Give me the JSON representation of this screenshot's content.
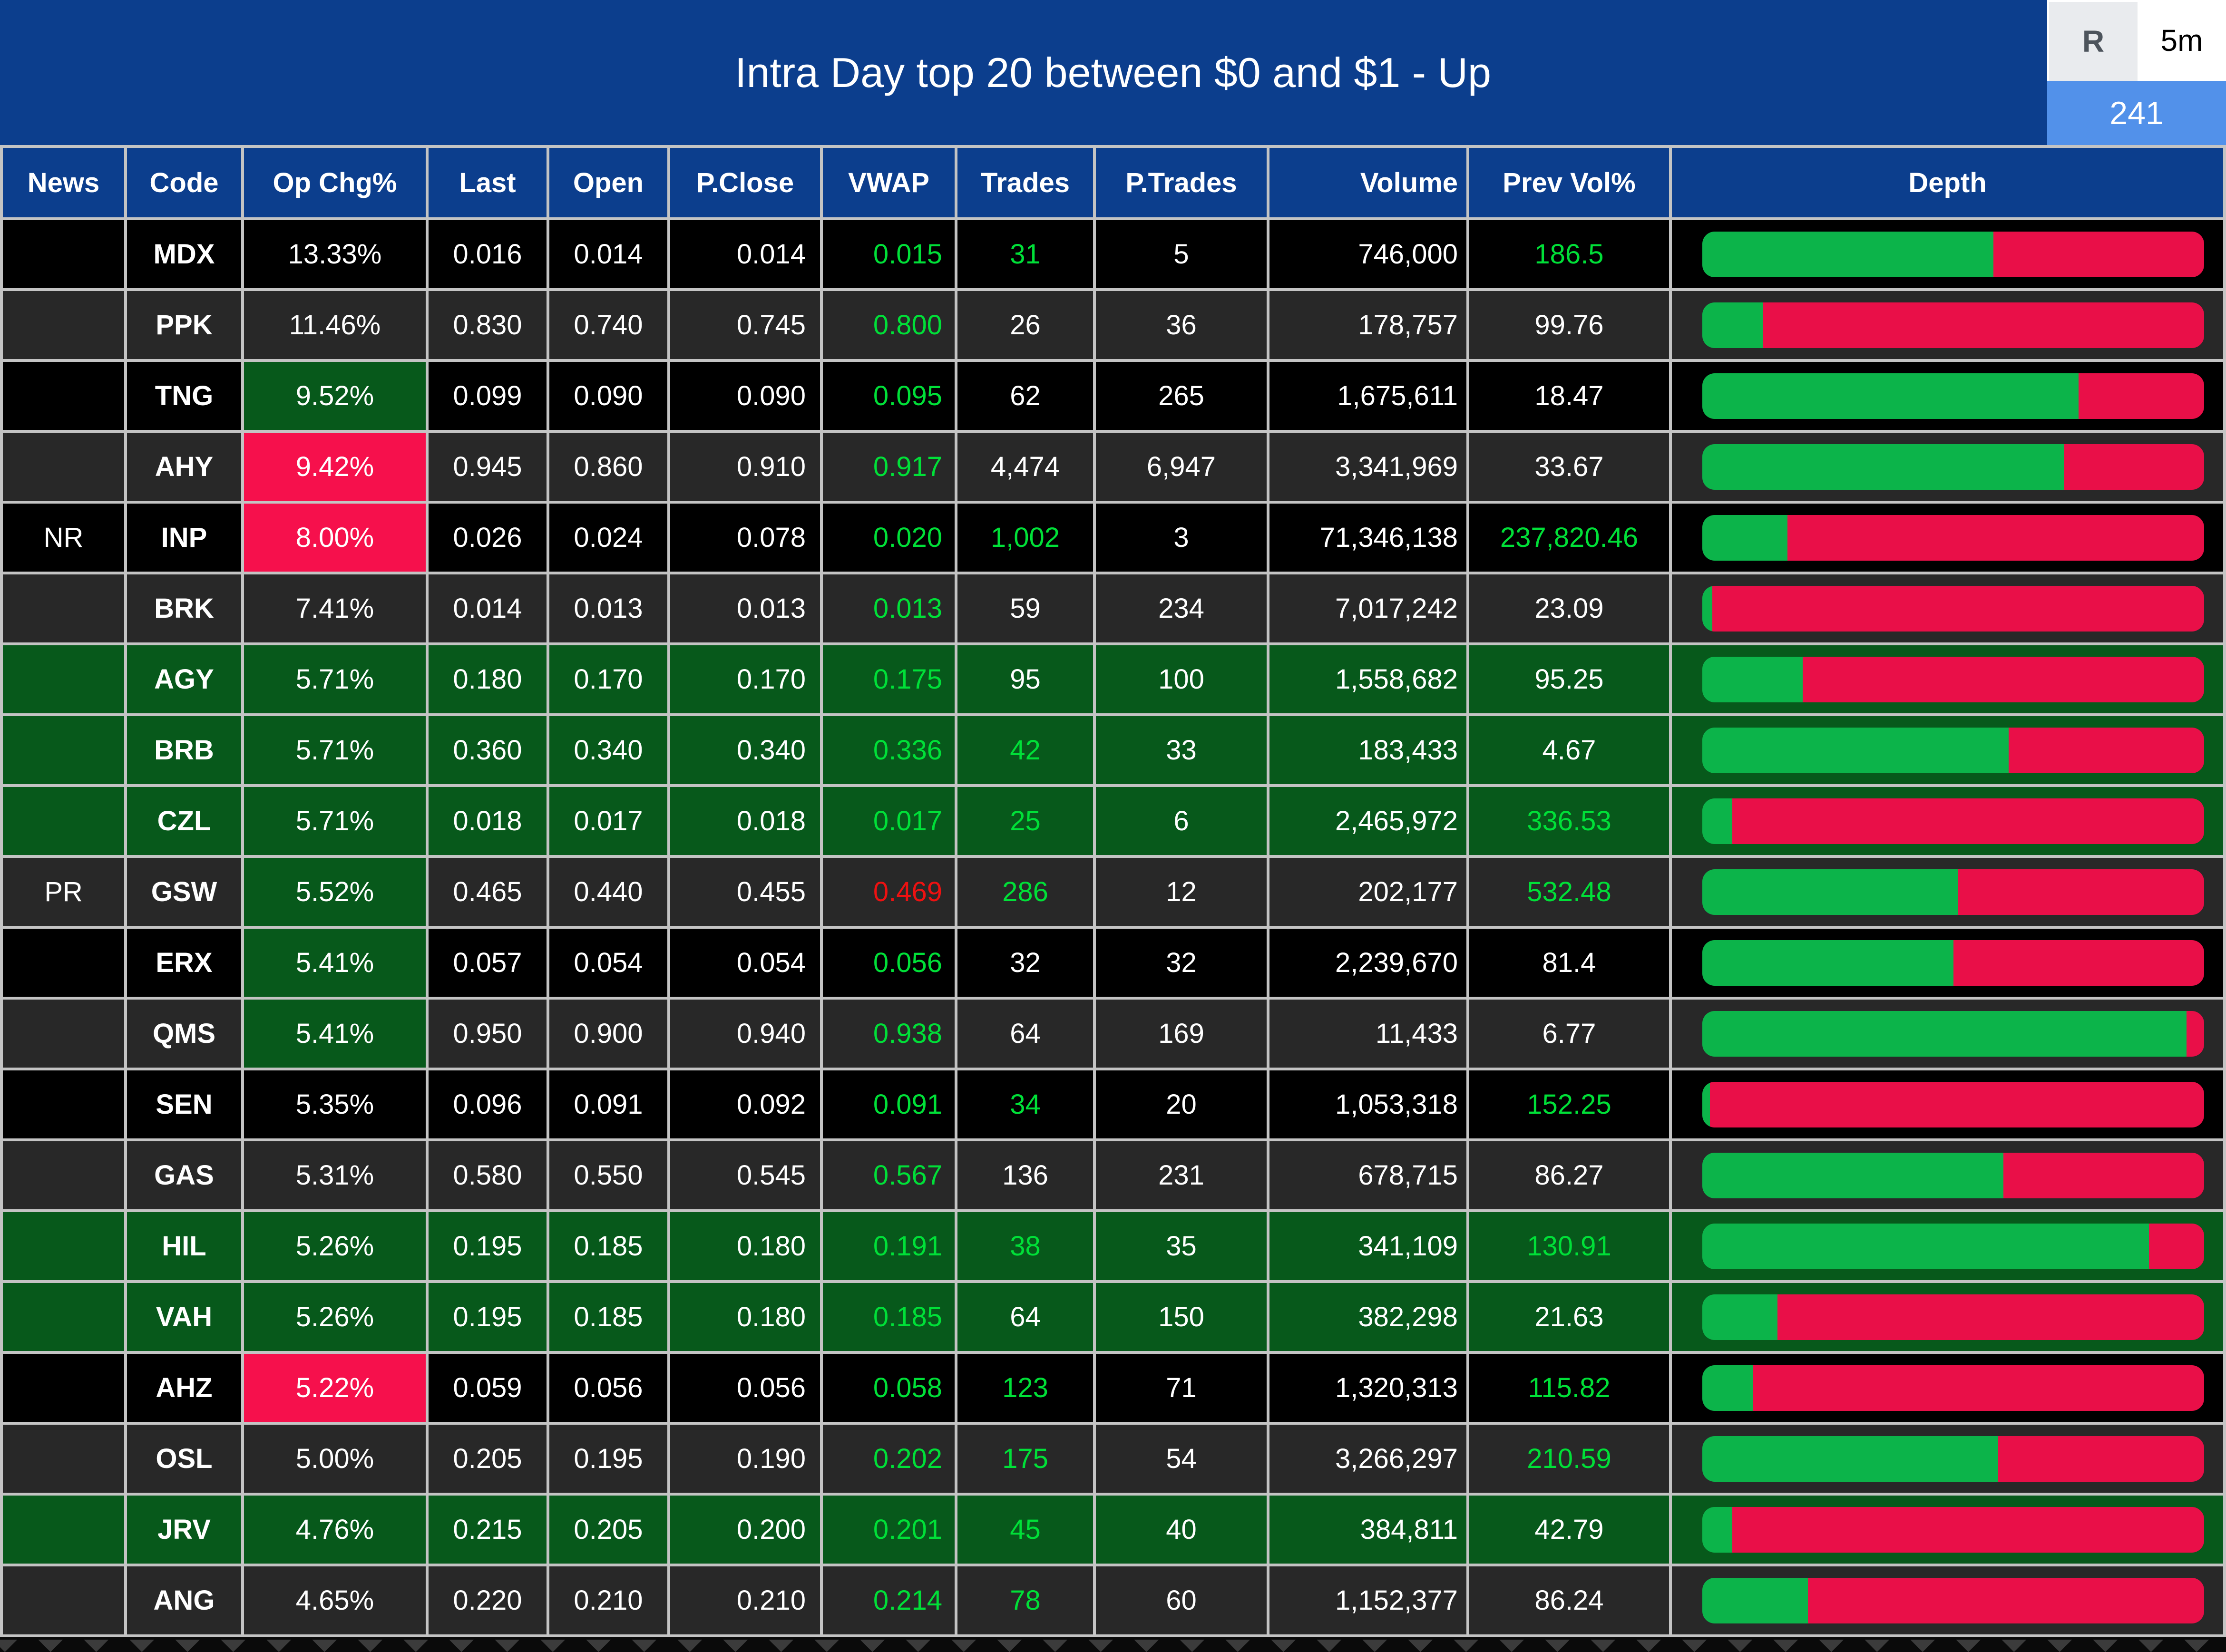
{
  "header": {
    "title": "Intra Day top 20 between $0 and $1 - Up",
    "refresh_label": "R",
    "timeframe": "5m",
    "count_badge": "241"
  },
  "colors": {
    "title_bar_blue": "#0c3e8d",
    "badge_blue": "#5291ea",
    "row_black": "#000000",
    "row_gray": "#282828",
    "row_green": "#07591b",
    "cell_pink": "#f6104c",
    "text_green": "#00e038",
    "text_red": "#ee1111",
    "bar_green": "#0cb44a",
    "bar_red": "#e90f48",
    "gridline": "#c4c4c4"
  },
  "columns": [
    {
      "key": "news",
      "label": "News",
      "align": "c"
    },
    {
      "key": "code",
      "label": "Code",
      "align": "c"
    },
    {
      "key": "op_chg",
      "label": "Op Chg%",
      "align": "c"
    },
    {
      "key": "last",
      "label": "Last",
      "align": "c"
    },
    {
      "key": "open",
      "label": "Open",
      "align": "c"
    },
    {
      "key": "p_close",
      "label": "P.Close",
      "align": "r",
      "pad": "pad-pc"
    },
    {
      "key": "vwap",
      "label": "VWAP",
      "align": "r",
      "pad": "pad-vw"
    },
    {
      "key": "trades",
      "label": "Trades",
      "align": "c"
    },
    {
      "key": "p_trades",
      "label": "P.Trades",
      "align": "c"
    },
    {
      "key": "volume",
      "label": "Volume",
      "align": "r",
      "pad": "pad-vol",
      "hdr_align": "r"
    },
    {
      "key": "prev_vol",
      "label": "Prev Vol%",
      "align": "c"
    },
    {
      "key": "depth",
      "label": "Depth",
      "align": "c"
    }
  ],
  "rows": [
    {
      "news": "",
      "code": "MDX",
      "op_chg": "13.33%",
      "op_bg": "none",
      "last": "0.016",
      "open": "0.014",
      "p_close": "0.014",
      "vwap": "0.015",
      "vwap_color": "green",
      "trades": "31",
      "trades_color": "green",
      "p_trades": "5",
      "volume": "746,000",
      "prev_vol": "186.5",
      "prev_vol_color": "green",
      "row_bg": "black",
      "depth_green_pct": 58
    },
    {
      "news": "",
      "code": "PPK",
      "op_chg": "11.46%",
      "op_bg": "none",
      "last": "0.830",
      "open": "0.740",
      "p_close": "0.745",
      "vwap": "0.800",
      "vwap_color": "green",
      "trades": "26",
      "trades_color": "white",
      "p_trades": "36",
      "volume": "178,757",
      "prev_vol": "99.76",
      "prev_vol_color": "white",
      "row_bg": "gray",
      "depth_green_pct": 12
    },
    {
      "news": "",
      "code": "TNG",
      "op_chg": "9.52%",
      "op_bg": "green",
      "last": "0.099",
      "open": "0.090",
      "p_close": "0.090",
      "vwap": "0.095",
      "vwap_color": "green",
      "trades": "62",
      "trades_color": "white",
      "p_trades": "265",
      "volume": "1,675,611",
      "prev_vol": "18.47",
      "prev_vol_color": "white",
      "row_bg": "black",
      "depth_green_pct": 75
    },
    {
      "news": "",
      "code": "AHY",
      "op_chg": "9.42%",
      "op_bg": "pink",
      "last": "0.945",
      "open": "0.860",
      "p_close": "0.910",
      "vwap": "0.917",
      "vwap_color": "green",
      "trades": "4,474",
      "trades_color": "white",
      "p_trades": "6,947",
      "volume": "3,341,969",
      "prev_vol": "33.67",
      "prev_vol_color": "white",
      "row_bg": "gray",
      "depth_green_pct": 72
    },
    {
      "news": "NR",
      "code": "INP",
      "op_chg": "8.00%",
      "op_bg": "pink",
      "last": "0.026",
      "open": "0.024",
      "p_close": "0.078",
      "vwap": "0.020",
      "vwap_color": "green",
      "trades": "1,002",
      "trades_color": "green",
      "p_trades": "3",
      "volume": "71,346,138",
      "prev_vol": "237,820.46",
      "prev_vol_color": "green",
      "row_bg": "black",
      "depth_green_pct": 17
    },
    {
      "news": "",
      "code": "BRK",
      "op_chg": "7.41%",
      "op_bg": "none",
      "last": "0.014",
      "open": "0.013",
      "p_close": "0.013",
      "vwap": "0.013",
      "vwap_color": "green",
      "trades": "59",
      "trades_color": "white",
      "p_trades": "234",
      "volume": "7,017,242",
      "prev_vol": "23.09",
      "prev_vol_color": "white",
      "row_bg": "gray",
      "depth_green_pct": 2
    },
    {
      "news": "",
      "code": "AGY",
      "op_chg": "5.71%",
      "op_bg": "none",
      "last": "0.180",
      "open": "0.170",
      "p_close": "0.170",
      "vwap": "0.175",
      "vwap_color": "green",
      "trades": "95",
      "trades_color": "white",
      "p_trades": "100",
      "volume": "1,558,682",
      "prev_vol": "95.25",
      "prev_vol_color": "white",
      "row_bg": "green",
      "depth_green_pct": 20
    },
    {
      "news": "",
      "code": "BRB",
      "op_chg": "5.71%",
      "op_bg": "none",
      "last": "0.360",
      "open": "0.340",
      "p_close": "0.340",
      "vwap": "0.336",
      "vwap_color": "green",
      "trades": "42",
      "trades_color": "green",
      "p_trades": "33",
      "volume": "183,433",
      "prev_vol": "4.67",
      "prev_vol_color": "white",
      "row_bg": "green",
      "depth_green_pct": 61
    },
    {
      "news": "",
      "code": "CZL",
      "op_chg": "5.71%",
      "op_bg": "none",
      "last": "0.018",
      "open": "0.017",
      "p_close": "0.018",
      "vwap": "0.017",
      "vwap_color": "green",
      "trades": "25",
      "trades_color": "green",
      "p_trades": "6",
      "volume": "2,465,972",
      "prev_vol": "336.53",
      "prev_vol_color": "green",
      "row_bg": "green",
      "depth_green_pct": 6
    },
    {
      "news": "PR",
      "code": "GSW",
      "op_chg": "5.52%",
      "op_bg": "green",
      "last": "0.465",
      "open": "0.440",
      "p_close": "0.455",
      "vwap": "0.469",
      "vwap_color": "red",
      "trades": "286",
      "trades_color": "green",
      "p_trades": "12",
      "volume": "202,177",
      "prev_vol": "532.48",
      "prev_vol_color": "green",
      "row_bg": "gray",
      "depth_green_pct": 51
    },
    {
      "news": "",
      "code": "ERX",
      "op_chg": "5.41%",
      "op_bg": "green",
      "last": "0.057",
      "open": "0.054",
      "p_close": "0.054",
      "vwap": "0.056",
      "vwap_color": "green",
      "trades": "32",
      "trades_color": "white",
      "p_trades": "32",
      "volume": "2,239,670",
      "prev_vol": "81.4",
      "prev_vol_color": "white",
      "row_bg": "black",
      "depth_green_pct": 50
    },
    {
      "news": "",
      "code": "QMS",
      "op_chg": "5.41%",
      "op_bg": "green",
      "last": "0.950",
      "open": "0.900",
      "p_close": "0.940",
      "vwap": "0.938",
      "vwap_color": "green",
      "trades": "64",
      "trades_color": "white",
      "p_trades": "169",
      "volume": "11,433",
      "prev_vol": "6.77",
      "prev_vol_color": "white",
      "row_bg": "gray",
      "depth_green_pct": 96.5
    },
    {
      "news": "",
      "code": "SEN",
      "op_chg": "5.35%",
      "op_bg": "none",
      "last": "0.096",
      "open": "0.091",
      "p_close": "0.092",
      "vwap": "0.091",
      "vwap_color": "green",
      "trades": "34",
      "trades_color": "green",
      "p_trades": "20",
      "volume": "1,053,318",
      "prev_vol": "152.25",
      "prev_vol_color": "green",
      "row_bg": "black",
      "depth_green_pct": 1.5
    },
    {
      "news": "",
      "code": "GAS",
      "op_chg": "5.31%",
      "op_bg": "none",
      "last": "0.580",
      "open": "0.550",
      "p_close": "0.545",
      "vwap": "0.567",
      "vwap_color": "green",
      "trades": "136",
      "trades_color": "white",
      "p_trades": "231",
      "volume": "678,715",
      "prev_vol": "86.27",
      "prev_vol_color": "white",
      "row_bg": "gray",
      "depth_green_pct": 60
    },
    {
      "news": "",
      "code": "HIL",
      "op_chg": "5.26%",
      "op_bg": "none",
      "last": "0.195",
      "open": "0.185",
      "p_close": "0.180",
      "vwap": "0.191",
      "vwap_color": "green",
      "trades": "38",
      "trades_color": "green",
      "p_trades": "35",
      "volume": "341,109",
      "prev_vol": "130.91",
      "prev_vol_color": "green",
      "row_bg": "green",
      "depth_green_pct": 89
    },
    {
      "news": "",
      "code": "VAH",
      "op_chg": "5.26%",
      "op_bg": "none",
      "last": "0.195",
      "open": "0.185",
      "p_close": "0.180",
      "vwap": "0.185",
      "vwap_color": "green",
      "trades": "64",
      "trades_color": "white",
      "p_trades": "150",
      "volume": "382,298",
      "prev_vol": "21.63",
      "prev_vol_color": "white",
      "row_bg": "green",
      "depth_green_pct": 15
    },
    {
      "news": "",
      "code": "AHZ",
      "op_chg": "5.22%",
      "op_bg": "pink",
      "last": "0.059",
      "open": "0.056",
      "p_close": "0.056",
      "vwap": "0.058",
      "vwap_color": "green",
      "trades": "123",
      "trades_color": "green",
      "p_trades": "71",
      "volume": "1,320,313",
      "prev_vol": "115.82",
      "prev_vol_color": "green",
      "row_bg": "black",
      "depth_green_pct": 10
    },
    {
      "news": "",
      "code": "OSL",
      "op_chg": "5.00%",
      "op_bg": "none",
      "last": "0.205",
      "open": "0.195",
      "p_close": "0.190",
      "vwap": "0.202",
      "vwap_color": "green",
      "trades": "175",
      "trades_color": "green",
      "p_trades": "54",
      "volume": "3,266,297",
      "prev_vol": "210.59",
      "prev_vol_color": "green",
      "row_bg": "gray",
      "depth_green_pct": 59
    },
    {
      "news": "",
      "code": "JRV",
      "op_chg": "4.76%",
      "op_bg": "none",
      "last": "0.215",
      "open": "0.205",
      "p_close": "0.200",
      "vwap": "0.201",
      "vwap_color": "green",
      "trades": "45",
      "trades_color": "green",
      "p_trades": "40",
      "volume": "384,811",
      "prev_vol": "42.79",
      "prev_vol_color": "white",
      "row_bg": "green",
      "depth_green_pct": 6
    },
    {
      "news": "",
      "code": "ANG",
      "op_chg": "4.65%",
      "op_bg": "none",
      "last": "0.220",
      "open": "0.210",
      "p_close": "0.210",
      "vwap": "0.214",
      "vwap_color": "green",
      "trades": "78",
      "trades_color": "green",
      "p_trades": "60",
      "volume": "1,152,377",
      "prev_vol": "86.24",
      "prev_vol_color": "white",
      "row_bg": "gray",
      "depth_green_pct": 21
    }
  ]
}
